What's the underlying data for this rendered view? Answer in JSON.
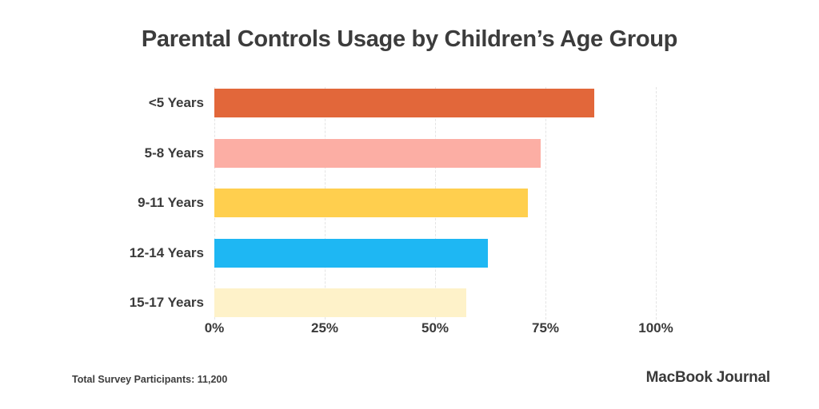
{
  "title": "Parental Controls Usage by Children’s Age Group",
  "footer": {
    "note": "Total Survey Participants: 11,200",
    "brand": "MacBook Journal"
  },
  "chart_data": {
    "type": "bar",
    "orientation": "horizontal",
    "title": "Parental Controls Usage by Children’s Age Group",
    "categories": [
      "<5 Years",
      "5-8 Years",
      "9-11 Years",
      "12-14 Years",
      "15-17 Years"
    ],
    "values": [
      86,
      74,
      71,
      62,
      57
    ],
    "unit": "%",
    "bar_colors": [
      "#E2673A",
      "#FCAEA4",
      "#FFCF4E",
      "#1EB7F3",
      "#FEF2C9"
    ],
    "xlabel": "",
    "ylabel": "",
    "xlim": [
      0,
      100
    ],
    "x_ticks": [
      "0%",
      "25%",
      "50%",
      "75%",
      "100%"
    ],
    "x_tick_values": [
      0,
      25,
      50,
      75,
      100
    ],
    "grid": "vertical dashed gridlines at each x tick, behind bars",
    "legend": "none",
    "gridline_color": "#E4E4E4",
    "text_color": "#3A3A3A",
    "background_color": "#FFFFFF"
  }
}
